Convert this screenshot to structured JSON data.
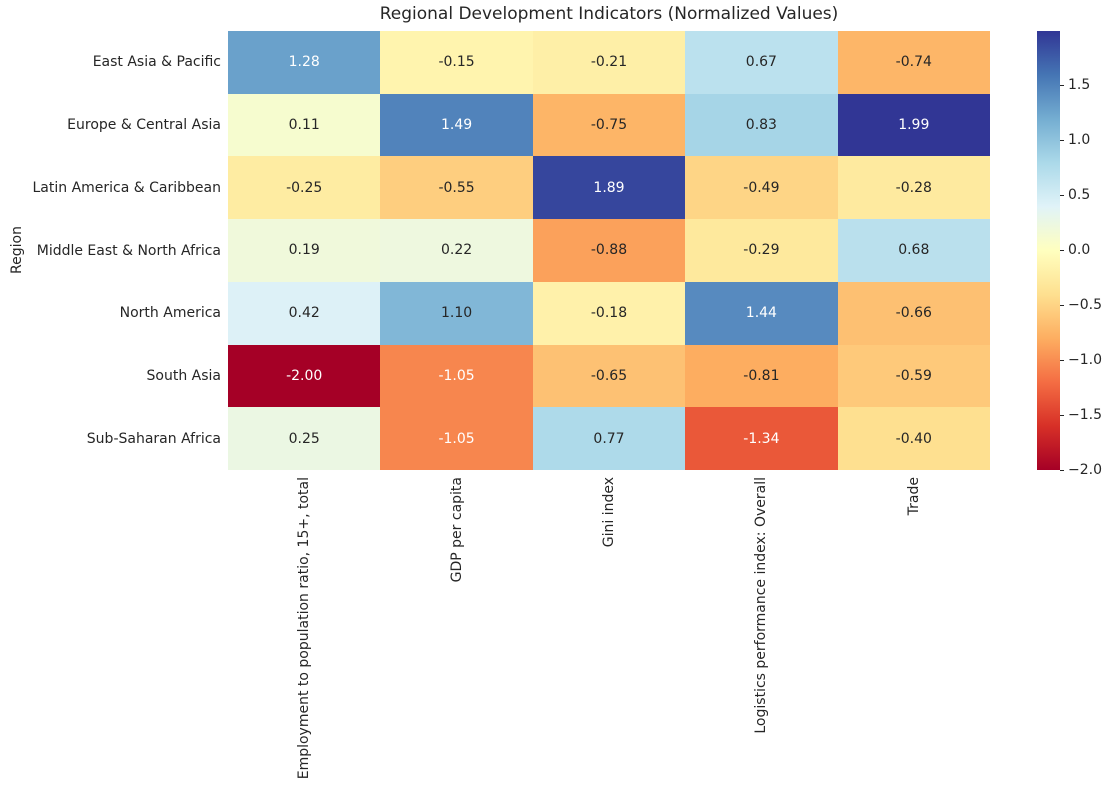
{
  "chart_data": {
    "type": "heatmap",
    "title": "Regional Development Indicators (Normalized Values)",
    "ylabel": "Region",
    "xlabel": "",
    "rows": [
      "East Asia & Pacific",
      "Europe & Central Asia",
      "Latin America & Caribbean",
      "Middle East & North Africa",
      "North America",
      "South Asia",
      "Sub-Saharan Africa"
    ],
    "columns": [
      "Employment to population ratio, 15+, total",
      "GDP per capita",
      "Gini index",
      "Logistics performance index: Overall",
      "Trade"
    ],
    "values": [
      [
        1.28,
        -0.15,
        -0.21,
        0.67,
        -0.74
      ],
      [
        0.11,
        1.49,
        -0.75,
        0.83,
        1.99
      ],
      [
        -0.25,
        -0.55,
        1.89,
        -0.49,
        -0.28
      ],
      [
        0.19,
        0.22,
        -0.88,
        -0.29,
        0.68
      ],
      [
        0.42,
        1.1,
        -0.18,
        1.44,
        -0.66
      ],
      [
        -2.0,
        -1.05,
        -0.65,
        -0.81,
        -0.59
      ],
      [
        0.25,
        -1.05,
        0.77,
        -1.34,
        -0.4
      ]
    ],
    "annotation_format": ".2f",
    "vmin": -2.0,
    "vmax": 1.99,
    "colormap": "RdYlBu",
    "colormap_stops": [
      "#a50026",
      "#d73027",
      "#f46d43",
      "#fdae61",
      "#fee090",
      "#ffffbf",
      "#e0f3f8",
      "#abd9e9",
      "#74add1",
      "#4575b4",
      "#313695"
    ],
    "colorbar_ticks": [
      1.5,
      1.0,
      0.5,
      0.0,
      -0.5,
      -1.0,
      -1.5,
      -2.0
    ],
    "colorbar_position": "right",
    "grid": false,
    "text_color": "#262626",
    "annotation_light_color": "#ffffff",
    "background_color": "#ffffff"
  }
}
